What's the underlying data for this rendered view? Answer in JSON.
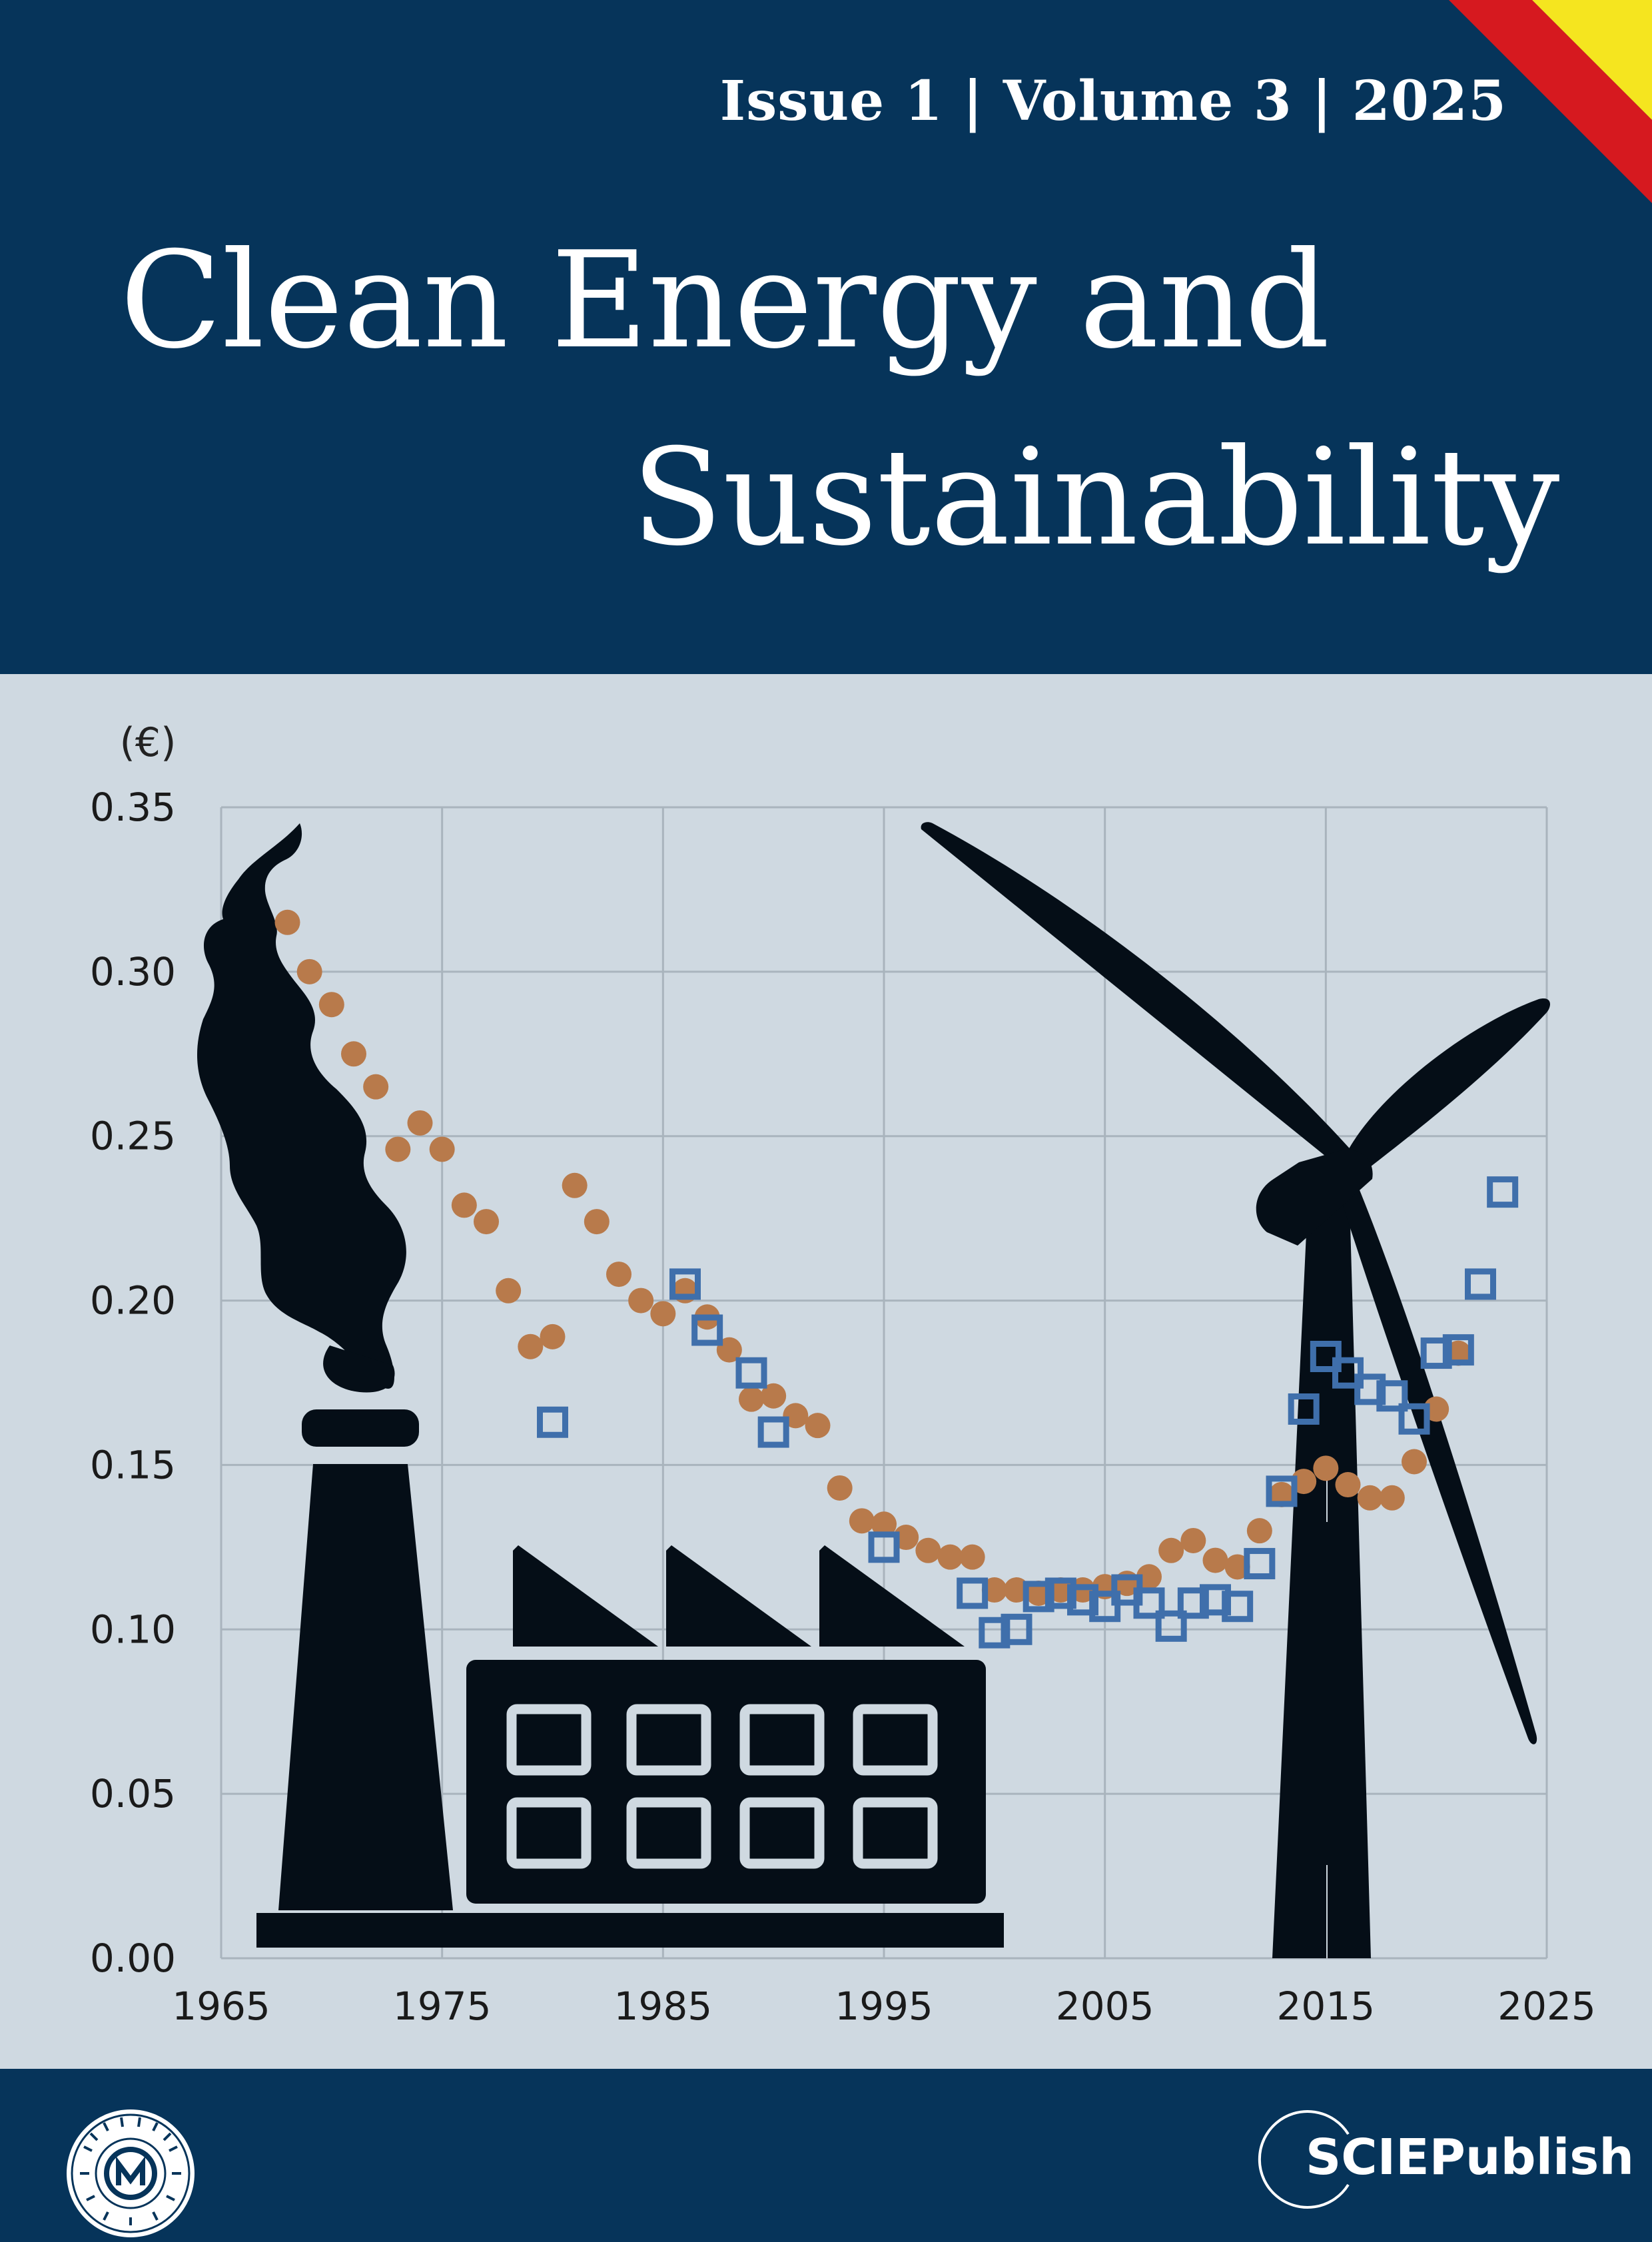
{
  "header": {
    "issue_line": "Issue 1 | Volume 3 | 2025",
    "title_line1": "Clean Energy and",
    "title_line2": "Sustainability"
  },
  "colors": {
    "navy": "#06345a",
    "background": "#cfd9e1",
    "orange_series": "#b87a4b",
    "blue_series": "#3f6fab",
    "silhouette": "#050e17",
    "flag_red": "#d6191f",
    "flag_yellow": "#f5e51f"
  },
  "chart_data": {
    "type": "scatter",
    "ylabel": "(€)",
    "xlim": [
      1965,
      2025
    ],
    "ylim": [
      0,
      0.35
    ],
    "xticks": [
      "1965",
      "1975",
      "1985",
      "1995",
      "2005",
      "2015",
      "2025"
    ],
    "yticks": [
      "0.00",
      "0.05",
      "0.10",
      "0.15",
      "0.20",
      "0.25",
      "0.30",
      "0.35"
    ],
    "grid": true,
    "series": [
      {
        "marker": "filled-circle",
        "color": "#b87a4b",
        "points": [
          [
            1968,
            0.315
          ],
          [
            1969,
            0.3
          ],
          [
            1970,
            0.29
          ],
          [
            1971,
            0.275
          ],
          [
            1972,
            0.265
          ],
          [
            1973,
            0.246
          ],
          [
            1974,
            0.254
          ],
          [
            1975,
            0.246
          ],
          [
            1976,
            0.229
          ],
          [
            1977,
            0.224
          ],
          [
            1978,
            0.203
          ],
          [
            1979,
            0.186
          ],
          [
            1980,
            0.189
          ],
          [
            1981,
            0.235
          ],
          [
            1982,
            0.224
          ],
          [
            1983,
            0.208
          ],
          [
            1984,
            0.2
          ],
          [
            1985,
            0.196
          ],
          [
            1986,
            0.203
          ],
          [
            1987,
            0.195
          ],
          [
            1988,
            0.185
          ],
          [
            1989,
            0.17
          ],
          [
            1990,
            0.171
          ],
          [
            1991,
            0.165
          ],
          [
            1992,
            0.162
          ],
          [
            1993,
            0.143
          ],
          [
            1994,
            0.133
          ],
          [
            1995,
            0.132
          ],
          [
            1996,
            0.128
          ],
          [
            1997,
            0.124
          ],
          [
            1998,
            0.122
          ],
          [
            1999,
            0.122
          ],
          [
            2000,
            0.112
          ],
          [
            2001,
            0.112
          ],
          [
            2002,
            0.111
          ],
          [
            2003,
            0.112
          ],
          [
            2004,
            0.112
          ],
          [
            2005,
            0.113
          ],
          [
            2006,
            0.114
          ],
          [
            2007,
            0.116
          ],
          [
            2008,
            0.124
          ],
          [
            2009,
            0.127
          ],
          [
            2010,
            0.121
          ],
          [
            2011,
            0.119
          ],
          [
            2012,
            0.13
          ],
          [
            2013,
            0.141
          ],
          [
            2014,
            0.145
          ],
          [
            2015,
            0.149
          ],
          [
            2016,
            0.144
          ],
          [
            2017,
            0.14
          ],
          [
            2018,
            0.14
          ],
          [
            2019,
            0.151
          ],
          [
            2020,
            0.167
          ],
          [
            2021,
            0.184
          ]
        ]
      },
      {
        "marker": "hollow-square",
        "color": "#3f6fab",
        "points": [
          [
            1980,
            0.163
          ],
          [
            1986,
            0.205
          ],
          [
            1987,
            0.191
          ],
          [
            1989,
            0.178
          ],
          [
            1990,
            0.16
          ],
          [
            1995,
            0.125
          ],
          [
            1999,
            0.111
          ],
          [
            2000,
            0.099
          ],
          [
            2001,
            0.1
          ],
          [
            2002,
            0.11
          ],
          [
            2003,
            0.111
          ],
          [
            2004,
            0.109
          ],
          [
            2005,
            0.107
          ],
          [
            2006,
            0.112
          ],
          [
            2007,
            0.108
          ],
          [
            2008,
            0.101
          ],
          [
            2009,
            0.108
          ],
          [
            2010,
            0.109
          ],
          [
            2011,
            0.107
          ],
          [
            2012,
            0.12
          ],
          [
            2013,
            0.142
          ],
          [
            2014,
            0.167
          ],
          [
            2015,
            0.183
          ],
          [
            2016,
            0.178
          ],
          [
            2017,
            0.173
          ],
          [
            2018,
            0.171
          ],
          [
            2019,
            0.164
          ],
          [
            2020,
            0.184
          ],
          [
            2021,
            0.185
          ],
          [
            2022,
            0.205
          ],
          [
            2023,
            0.233
          ]
        ]
      }
    ]
  },
  "illustration": {
    "left": "factory-with-smokestack-silhouette",
    "right": "wind-turbine-silhouette"
  },
  "footer": {
    "seal_icon": "university-seal-icon",
    "publisher": "SCIEPublish"
  }
}
